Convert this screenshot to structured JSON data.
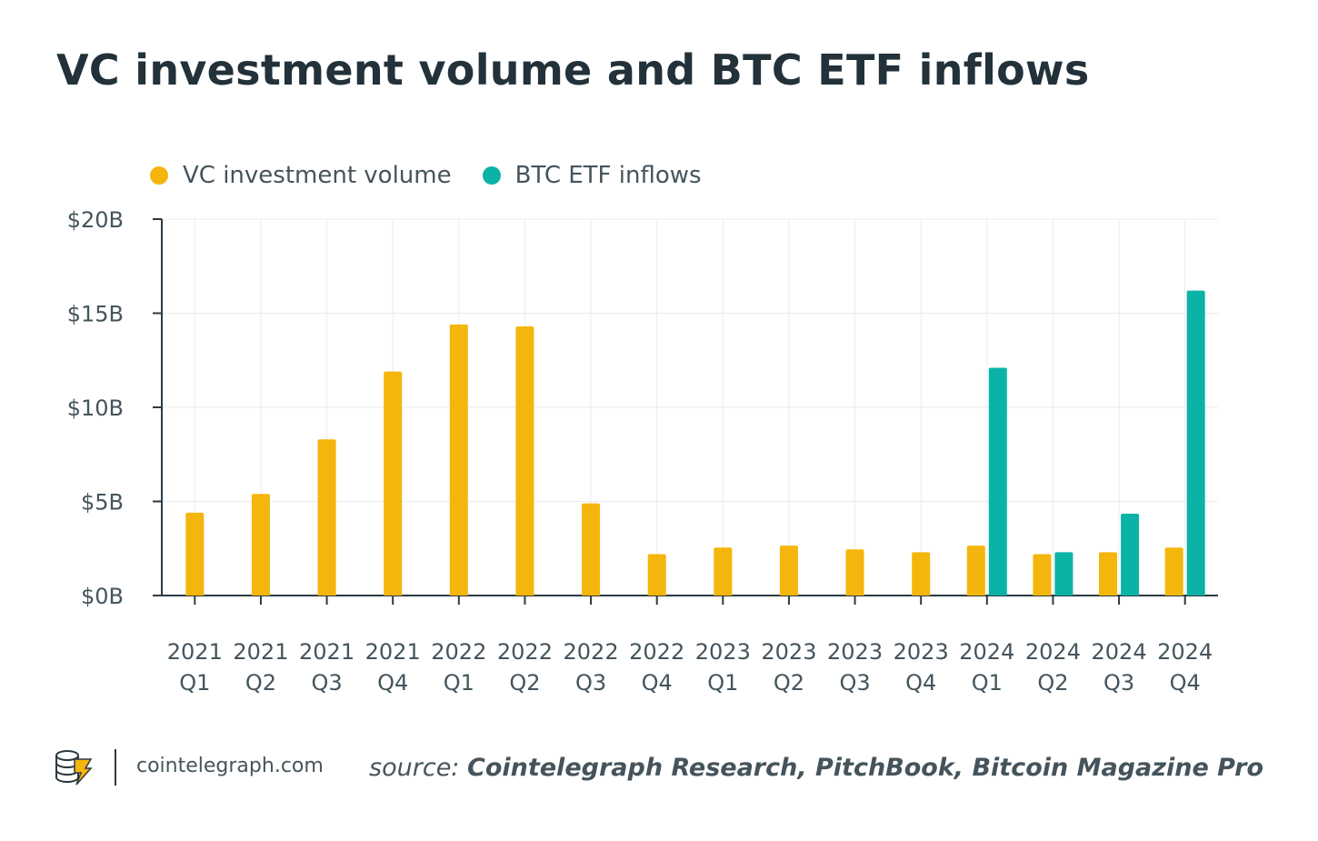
{
  "header": {
    "title": "VC investment volume and BTC ETF inflows"
  },
  "colors": {
    "vc": "#F4B60C",
    "etf": "#0BB3A6",
    "grid": "#e9ecee",
    "axis": "#2c3a42",
    "text": "#45545c"
  },
  "chart_data": {
    "type": "bar",
    "title": "VC investment volume and BTC ETF inflows",
    "xlabel": "",
    "ylabel": "",
    "ylim": [
      0,
      20
    ],
    "yticks": [
      0,
      5,
      10,
      15,
      20
    ],
    "ytick_labels": [
      "$0B",
      "$5B",
      "$10B",
      "$15B",
      "$20B"
    ],
    "grid": true,
    "legend_position": "top-left",
    "categories": [
      [
        "2021",
        "Q1"
      ],
      [
        "2021",
        "Q2"
      ],
      [
        "2021",
        "Q3"
      ],
      [
        "2021",
        "Q4"
      ],
      [
        "2022",
        "Q1"
      ],
      [
        "2022",
        "Q2"
      ],
      [
        "2022",
        "Q3"
      ],
      [
        "2022",
        "Q4"
      ],
      [
        "2023",
        "Q1"
      ],
      [
        "2023",
        "Q2"
      ],
      [
        "2023",
        "Q3"
      ],
      [
        "2023",
        "Q4"
      ],
      [
        "2024",
        "Q1"
      ],
      [
        "2024",
        "Q2"
      ],
      [
        "2024",
        "Q3"
      ],
      [
        "2024",
        "Q4"
      ]
    ],
    "series": [
      {
        "name": "VC investment volume",
        "color": "#F4B60C",
        "values": [
          4.4,
          5.4,
          8.3,
          11.9,
          14.4,
          14.3,
          4.9,
          2.2,
          2.55,
          2.65,
          2.45,
          2.3,
          2.65,
          2.2,
          2.3,
          2.55
        ]
      },
      {
        "name": "BTC ETF inflows",
        "color": "#0BB3A6",
        "values": [
          null,
          null,
          null,
          null,
          null,
          null,
          null,
          null,
          null,
          null,
          null,
          null,
          12.1,
          2.3,
          4.35,
          16.2
        ]
      }
    ],
    "unit": "USD billions"
  },
  "footer": {
    "domain": "cointelegraph.com",
    "source_prefix": "source:",
    "source_text": "Cointelegraph Research, PitchBook, Bitcoin Magazine Pro"
  }
}
